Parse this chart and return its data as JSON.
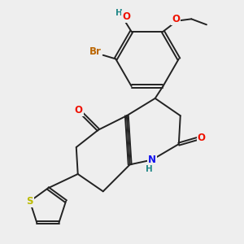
{
  "bg_color": "#eeeeee",
  "bond_color": "#222222",
  "bond_lw": 1.4,
  "atom_colors": {
    "O": "#ee1100",
    "N": "#1111ee",
    "S": "#bbbb00",
    "Br": "#bb6600",
    "H": "#228888",
    "C": "#222222"
  },
  "afs": 8.5
}
